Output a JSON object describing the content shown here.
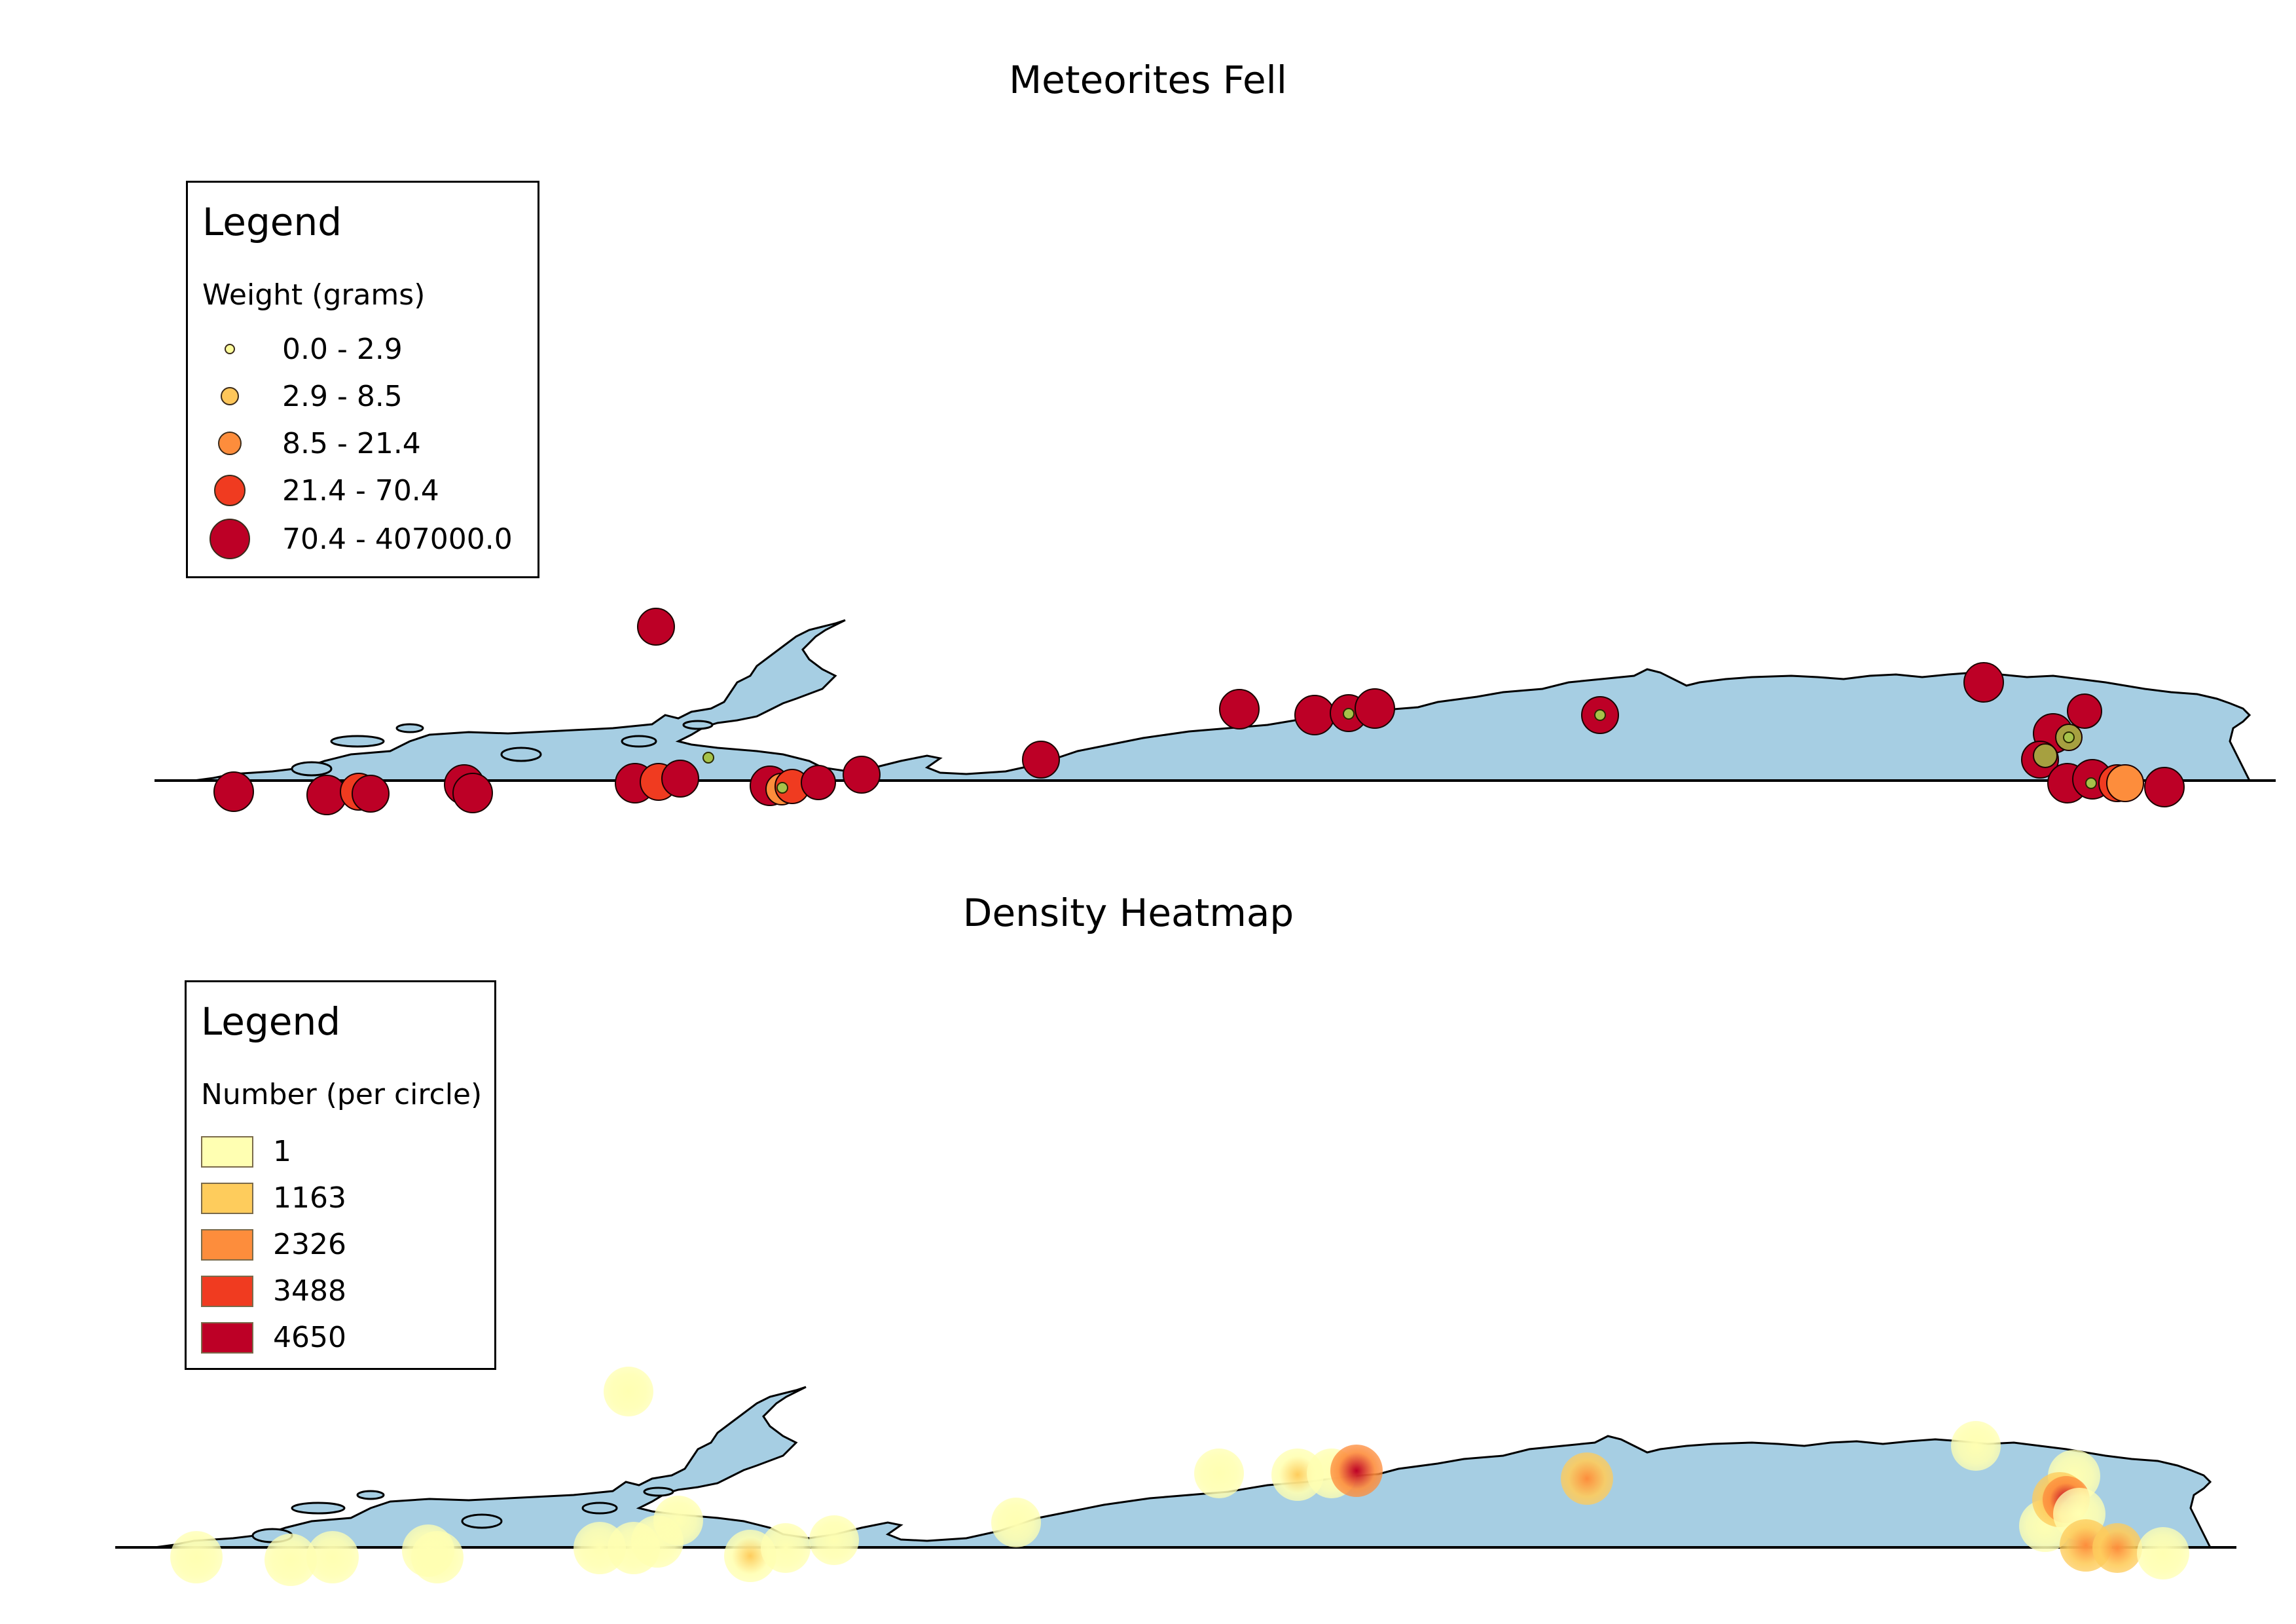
{
  "map1": {
    "title": "Meteorites Fell",
    "legend": {
      "title": "Legend",
      "subtitle": "Weight (grams)",
      "classes": [
        {
          "label": "0.0 - 2.9",
          "color": "#fdfd9c",
          "size": 1
        },
        {
          "label": "2.9 - 8.5",
          "color": "#fec65a",
          "size": 2
        },
        {
          "label": "8.5 - 21.4",
          "color": "#fd8d3c",
          "size": 3
        },
        {
          "label": "21.4 - 70.4",
          "color": "#f03b20",
          "size": 4
        },
        {
          "label": "70.4 - 407000.0",
          "color": "#bd0026",
          "size": 5
        }
      ]
    }
  },
  "map2": {
    "title": "Density Heatmap",
    "legend": {
      "title": "Legend",
      "subtitle": "Number (per circle)",
      "classes": [
        {
          "label": "1",
          "color": "#ffffb2"
        },
        {
          "label": "1163",
          "color": "#fecc5c"
        },
        {
          "label": "2326",
          "color": "#fd8d3c"
        },
        {
          "label": "3488",
          "color": "#f03b20"
        },
        {
          "label": "4650",
          "color": "#bd0026"
        }
      ]
    }
  },
  "colors": {
    "land": "#a6cee3",
    "outline": "#000000",
    "bubble_large": "#bd0026",
    "bubble_mid": "#f03b20",
    "bubble_small": "#fd8d3c",
    "bubble_olive": "#a6a040",
    "heat_low": "#ffffb2",
    "heat_mid": "#fd8d3c",
    "heat_high": "#bd0026"
  }
}
